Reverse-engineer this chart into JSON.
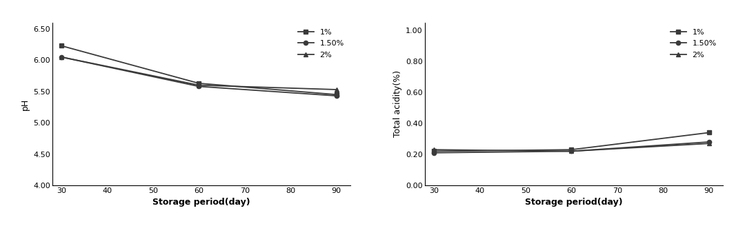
{
  "x": [
    30,
    60,
    90
  ],
  "ph_1pct": [
    6.23,
    5.63,
    5.45
  ],
  "ph_15pct": [
    6.05,
    5.58,
    5.43
  ],
  "ph_2pct": [
    6.05,
    5.6,
    5.53
  ],
  "ta_1pct": [
    0.22,
    0.23,
    0.34
  ],
  "ta_15pct": [
    0.21,
    0.22,
    0.28
  ],
  "ta_2pct": [
    0.23,
    0.22,
    0.27
  ],
  "ph_ylim": [
    4.0,
    6.6
  ],
  "ph_yticks": [
    4.0,
    4.5,
    5.0,
    5.5,
    6.0,
    6.5
  ],
  "ph_ytick_labels": [
    "4.00",
    "4.50",
    "5.00",
    "5.50",
    "6.00",
    "6.50"
  ],
  "ta_ylim": [
    0.0,
    1.05
  ],
  "ta_yticks": [
    0.0,
    0.2,
    0.4,
    0.6,
    0.8,
    1.0
  ],
  "ta_ytick_labels": [
    "0.00",
    "0.20",
    "0.40",
    "0.60",
    "0.80",
    "1.00"
  ],
  "xticks": [
    30,
    40,
    50,
    60,
    70,
    80,
    90
  ],
  "xlabel": "Storage period(day)",
  "ph_ylabel": "pH",
  "ta_ylabel": "Total acidity(%)",
  "legend_labels": [
    "1%",
    "1.50%",
    "2%"
  ],
  "line_color": "#3a3a3a",
  "marker_square": "s",
  "marker_circle": "o",
  "marker_triangle": "^",
  "bg_color": "#ffffff",
  "fontsize_axis_label": 9,
  "fontsize_tick": 8,
  "fontsize_legend": 8
}
